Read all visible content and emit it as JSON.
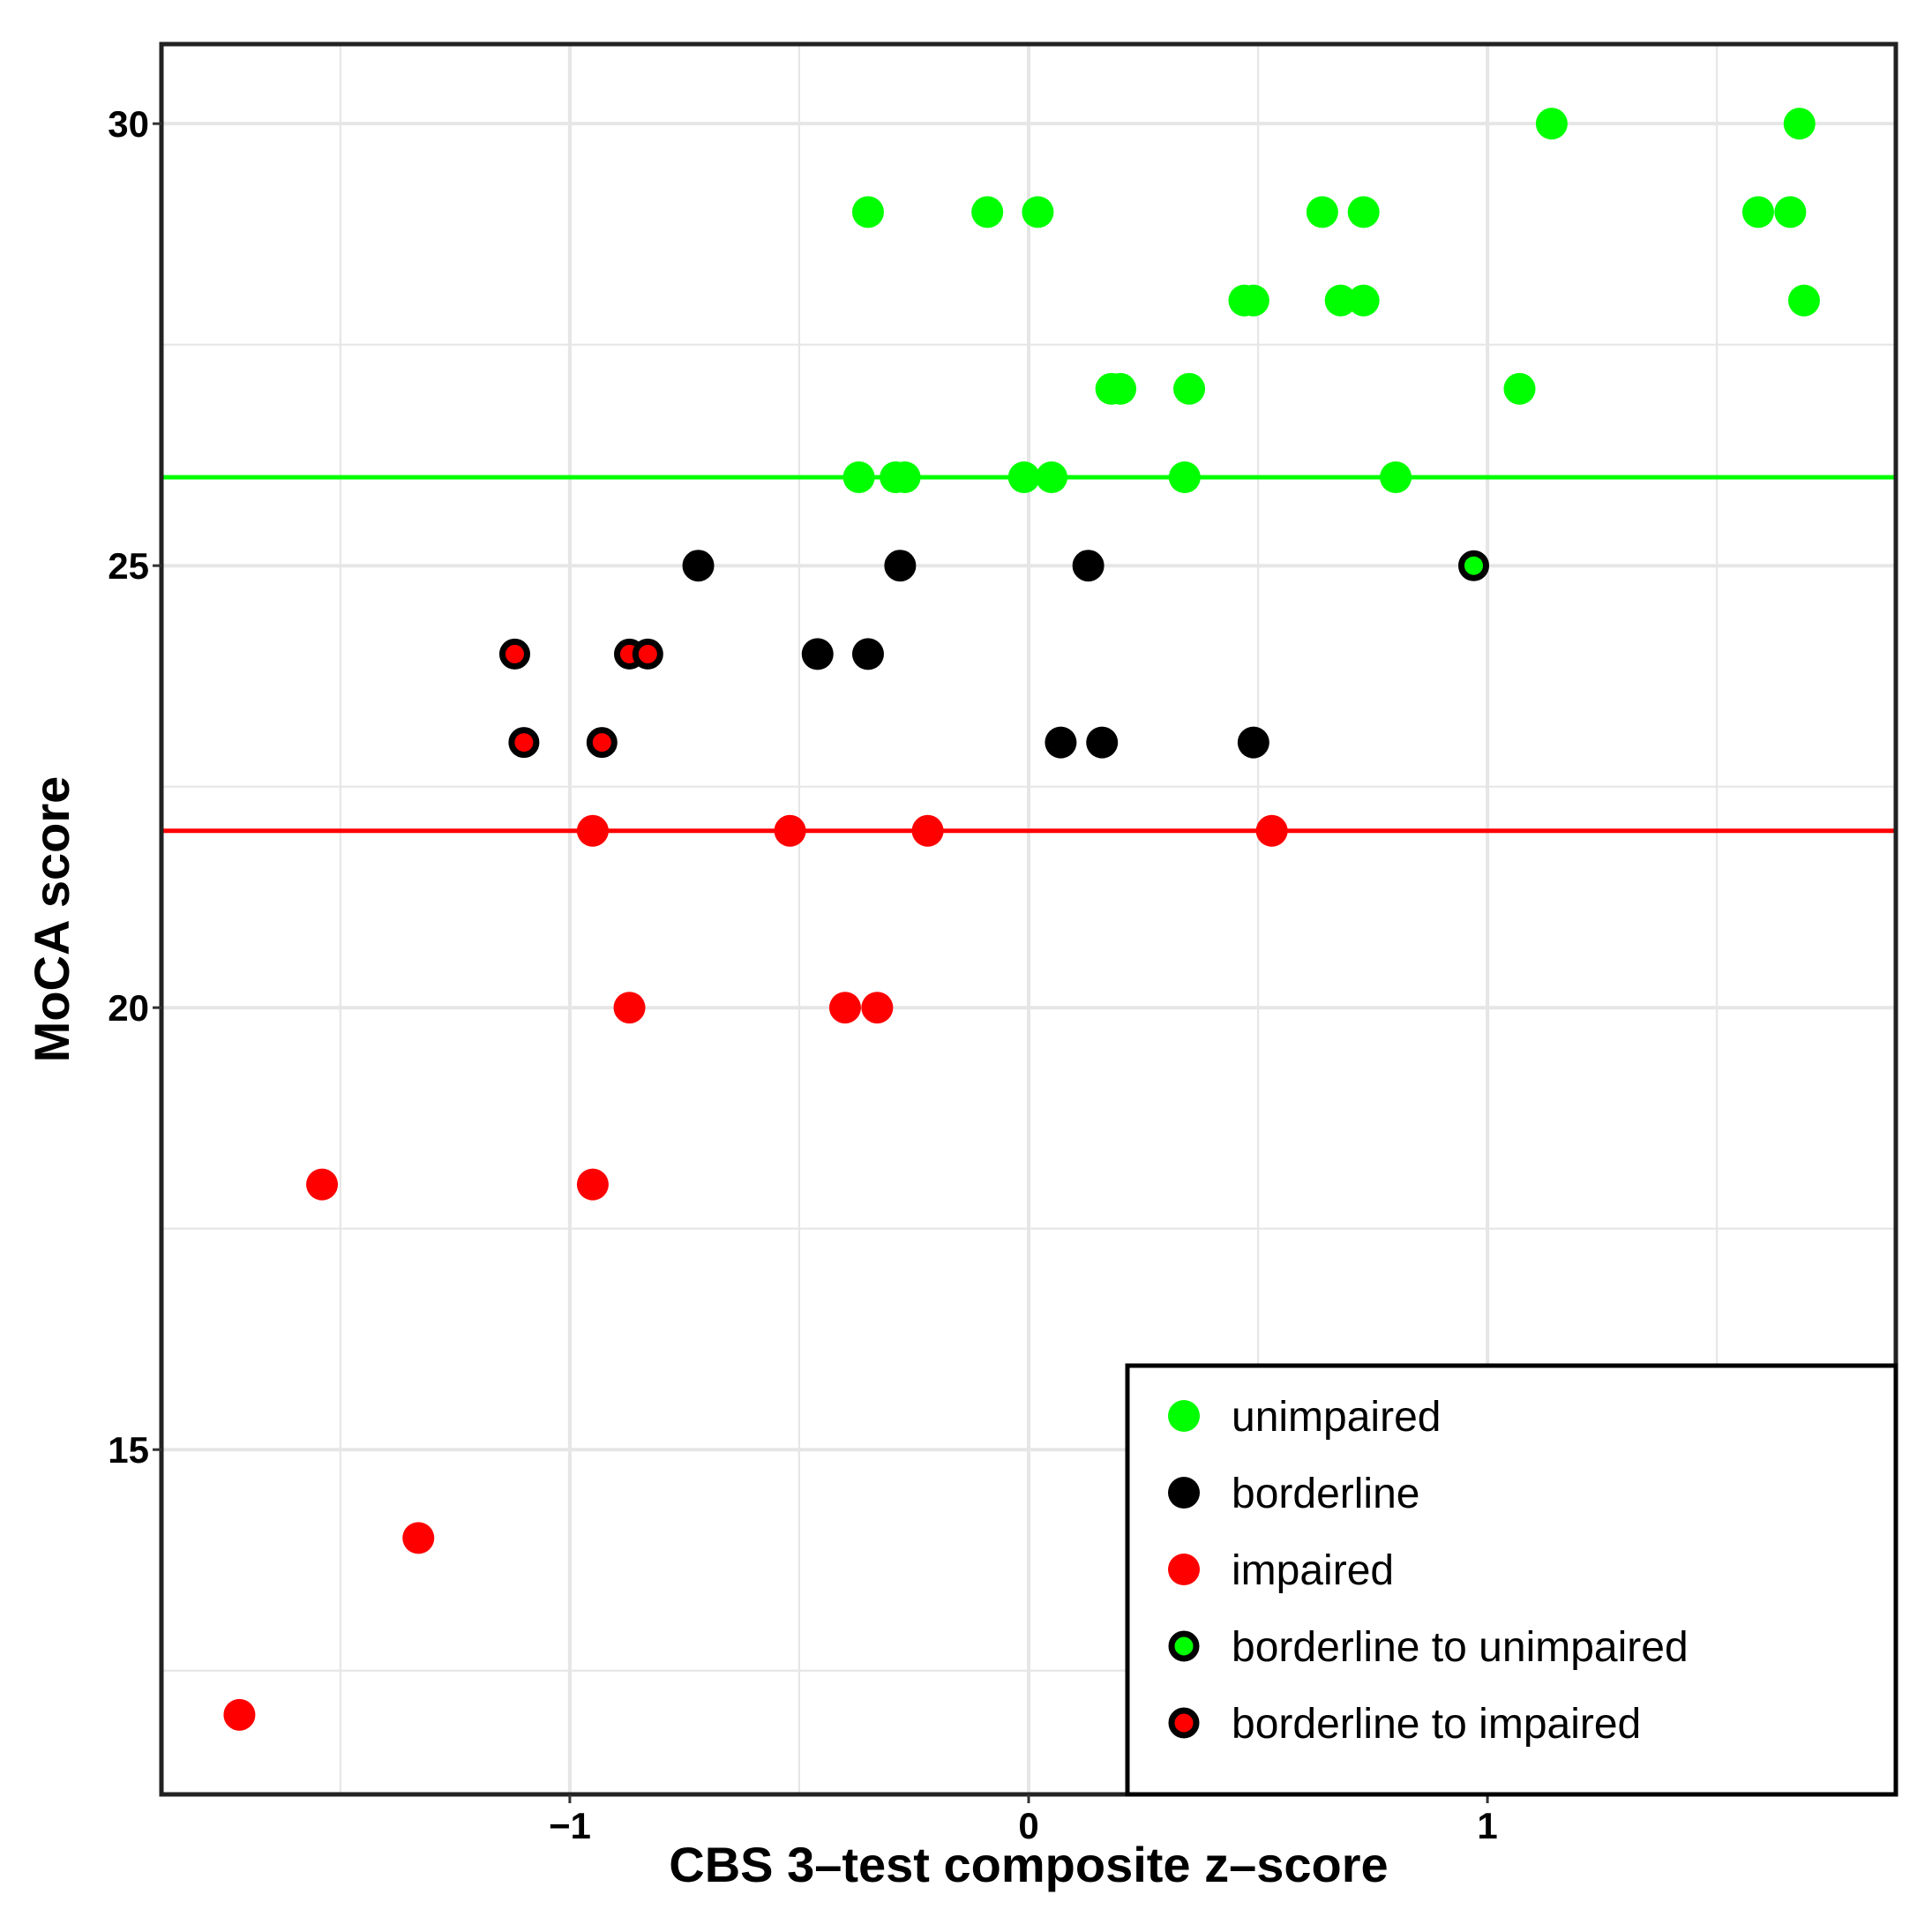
{
  "chart_data": {
    "type": "scatter",
    "title": "",
    "xlabel": "CBS 3–test composite z–score",
    "ylabel": "MoCA score",
    "xlim": [
      -1.89,
      1.89
    ],
    "ylim": [
      11.1,
      30.9
    ],
    "x_ticks": [
      -1,
      0,
      1
    ],
    "x_tick_labels": [
      "−1",
      "0",
      "1"
    ],
    "y_ticks": [
      15,
      20,
      25,
      30
    ],
    "y_tick_labels": [
      "15",
      "20",
      "25",
      "30"
    ],
    "grid": true,
    "reference_lines": [
      {
        "name": "unimpaired threshold",
        "y": 26,
        "color": "#00ff00"
      },
      {
        "name": "impaired threshold",
        "y": 22,
        "color": "#ff0000"
      }
    ],
    "legend_position": "bottom-right",
    "series": [
      {
        "name": "unimpaired",
        "fill": "#00ff00",
        "outlined": false,
        "points": [
          [
            1.14,
            30
          ],
          [
            1.68,
            30
          ],
          [
            -0.35,
            29
          ],
          [
            -0.09,
            29
          ],
          [
            0.02,
            29
          ],
          [
            0.64,
            29
          ],
          [
            0.73,
            29
          ],
          [
            1.59,
            29
          ],
          [
            1.66,
            29
          ],
          [
            0.47,
            28
          ],
          [
            0.49,
            28
          ],
          [
            0.68,
            28
          ],
          [
            0.73,
            28
          ],
          [
            1.69,
            28
          ],
          [
            0.18,
            27
          ],
          [
            0.2,
            27
          ],
          [
            0.35,
            27
          ],
          [
            1.07,
            27
          ],
          [
            -0.37,
            26
          ],
          [
            -0.29,
            26
          ],
          [
            -0.27,
            26
          ],
          [
            -0.01,
            26
          ],
          [
            0.05,
            26
          ],
          [
            0.34,
            26
          ],
          [
            0.8,
            26
          ]
        ]
      },
      {
        "name": "borderline",
        "fill": "#000000",
        "outlined": false,
        "points": [
          [
            -0.72,
            25
          ],
          [
            -0.28,
            25
          ],
          [
            0.13,
            25
          ],
          [
            -0.46,
            24
          ],
          [
            -0.35,
            24
          ],
          [
            0.07,
            23
          ],
          [
            0.16,
            23
          ],
          [
            0.49,
            23
          ]
        ]
      },
      {
        "name": "impaired",
        "fill": "#ff0000",
        "outlined": false,
        "points": [
          [
            -0.95,
            22
          ],
          [
            -0.52,
            22
          ],
          [
            -0.22,
            22
          ],
          [
            0.53,
            22
          ],
          [
            -0.87,
            20
          ],
          [
            -0.4,
            20
          ],
          [
            -0.33,
            20
          ],
          [
            -1.54,
            18
          ],
          [
            -0.95,
            18
          ],
          [
            -1.33,
            14
          ],
          [
            -1.72,
            12
          ]
        ]
      },
      {
        "name": "borderline to unimpaired",
        "fill": "#00ff00",
        "outlined": true,
        "points": [
          [
            0.97,
            25
          ]
        ]
      },
      {
        "name": "borderline to impaired",
        "fill": "#ff0000",
        "outlined": true,
        "points": [
          [
            -1.12,
            24
          ],
          [
            -0.87,
            24
          ],
          [
            -0.83,
            24
          ],
          [
            -1.1,
            23
          ],
          [
            -0.93,
            23
          ]
        ]
      }
    ]
  }
}
